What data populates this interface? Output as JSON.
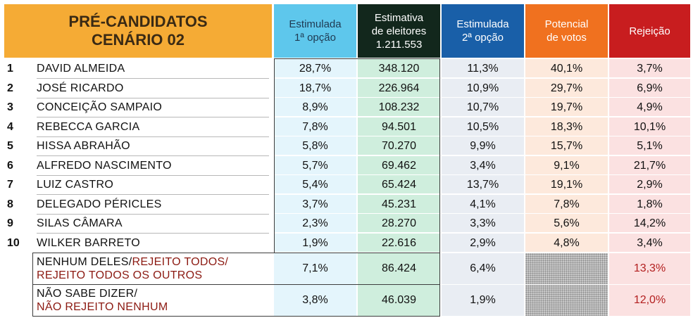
{
  "header": {
    "title_line1": "PRÉ-CANDIDATOS",
    "title_line2": "CENÁRIO 02",
    "col1_line1": "Estimulada",
    "col1_line2": "1ª opção",
    "col2_line1": "Estimativa",
    "col2_line2": "de eleitores",
    "col2_line3": "1.211.553",
    "col3_line1": "Estimulada",
    "col3_line2": "2ª opção",
    "col4_line1": "Potencial",
    "col4_line2": "de votos",
    "col5_line1": "Rejeição"
  },
  "rows": [
    {
      "n": "1",
      "name": "DAVID ALMEIDA",
      "c1": "28,7%",
      "c2": "348.120",
      "c3": "11,3%",
      "c4": "40,1%",
      "c5": "3,7%"
    },
    {
      "n": "2",
      "name": "JOSÉ RICARDO",
      "c1": "18,7%",
      "c2": "226.964",
      "c3": "10,9%",
      "c4": "29,7%",
      "c5": "6,9%"
    },
    {
      "n": "3",
      "name": "CONCEIÇÃO SAMPAIO",
      "c1": "8,9%",
      "c2": "108.232",
      "c3": "10,7%",
      "c4": "19,7%",
      "c5": "4,9%"
    },
    {
      "n": "4",
      "name": "REBECCA GARCIA",
      "c1": "7,8%",
      "c2": "94.501",
      "c3": "10,5%",
      "c4": "18,3%",
      "c5": "10,1%"
    },
    {
      "n": "5",
      "name": "HISSA ABRAHÃO",
      "c1": "5,8%",
      "c2": "70.270",
      "c3": "9,9%",
      "c4": "15,7%",
      "c5": "5,1%"
    },
    {
      "n": "6",
      "name": "ALFREDO NASCIMENTO",
      "c1": "5,7%",
      "c2": "69.462",
      "c3": "3,4%",
      "c4": "9,1%",
      "c5": "21,7%"
    },
    {
      "n": "7",
      "name": "LUIZ CASTRO",
      "c1": "5,4%",
      "c2": "65.424",
      "c3": "13,7%",
      "c4": "19,1%",
      "c5": "2,9%"
    },
    {
      "n": "8",
      "name": "DELEGADO PÉRICLES",
      "c1": "3,7%",
      "c2": "45.231",
      "c3": "4,1%",
      "c4": "7,8%",
      "c5": "1,8%"
    },
    {
      "n": "9",
      "name": "SILAS CÂMARA",
      "c1": "2,3%",
      "c2": "28.270",
      "c3": "3,3%",
      "c4": "5,6%",
      "c5": "14,2%"
    },
    {
      "n": "10",
      "name": "WILKER BARRETO",
      "c1": "1,9%",
      "c2": "22.616",
      "c3": "2,9%",
      "c4": "4,8%",
      "c5": "3,4%"
    }
  ],
  "extra": [
    {
      "label_a": "NENHUM DELES/",
      "label_b": "REJEITO TODOS/",
      "label_c": "REJEITO TODOS OS OUTROS",
      "c1": "7,1%",
      "c2": "86.424",
      "c3": "6,4%",
      "c5": "13,3%"
    },
    {
      "label_a": "NÃO SABE DIZER/",
      "label_b": "",
      "label_c": "NÃO REJEITO NENHUM",
      "c1": "3,8%",
      "c2": "46.039",
      "c3": "1,9%",
      "c5": "12,0%"
    }
  ]
}
